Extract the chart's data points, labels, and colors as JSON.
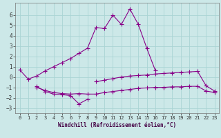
{
  "x": [
    0,
    1,
    2,
    3,
    4,
    5,
    6,
    7,
    8,
    9,
    10,
    11,
    12,
    13,
    14,
    15,
    16,
    17,
    18,
    19,
    20,
    21,
    22,
    23
  ],
  "line1": [
    0.7,
    -0.2,
    0.1,
    0.6,
    1.0,
    1.4,
    1.8,
    2.3,
    2.8,
    4.8,
    4.7,
    6.0,
    5.1,
    6.6,
    5.1,
    2.8,
    0.65,
    null,
    null,
    null,
    null,
    null,
    null,
    null
  ],
  "line2": [
    null,
    null,
    -0.9,
    -1.4,
    -1.65,
    -1.7,
    -1.8,
    -2.6,
    -2.15,
    null,
    null,
    null,
    null,
    null,
    null,
    null,
    null,
    null,
    null,
    null,
    null,
    null,
    null,
    null
  ],
  "line3": [
    null,
    null,
    -1.0,
    -1.3,
    -1.5,
    -1.6,
    -1.65,
    -1.6,
    -1.65,
    -1.65,
    -1.5,
    -1.4,
    -1.3,
    -1.2,
    -1.1,
    -1.05,
    -1.0,
    -1.0,
    -0.95,
    -0.95,
    -0.9,
    -0.9,
    -1.35,
    -1.5
  ],
  "line4": [
    null,
    null,
    null,
    null,
    null,
    null,
    null,
    null,
    null,
    -0.45,
    -0.3,
    -0.15,
    0.0,
    0.1,
    0.15,
    0.2,
    0.3,
    0.35,
    0.4,
    0.45,
    0.5,
    0.55,
    -0.85,
    -1.35
  ],
  "background_color": "#cce8e8",
  "line_color": "#880088",
  "grid_color": "#aad4d4",
  "xlabel": "Windchill (Refroidissement éolien,°C)",
  "xlim": [
    -0.5,
    23.5
  ],
  "ylim": [
    -3.5,
    7.2
  ],
  "yticks": [
    -3,
    -2,
    -1,
    0,
    1,
    2,
    3,
    4,
    5,
    6
  ],
  "xticks": [
    0,
    1,
    2,
    3,
    4,
    5,
    6,
    7,
    8,
    9,
    10,
    11,
    12,
    13,
    14,
    15,
    16,
    17,
    18,
    19,
    20,
    21,
    22,
    23
  ]
}
